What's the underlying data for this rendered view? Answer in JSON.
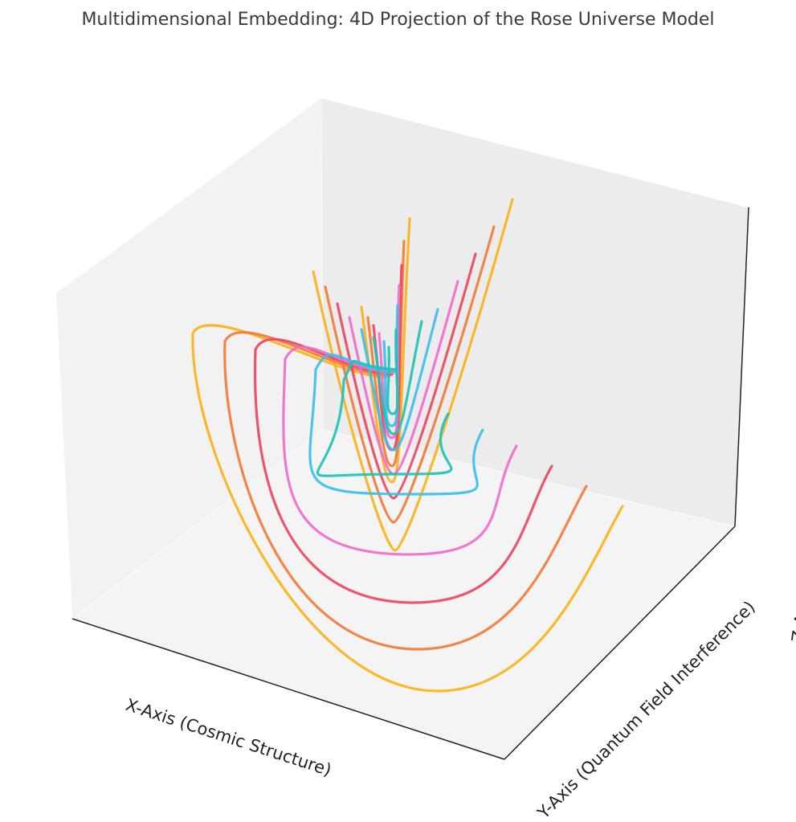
{
  "chart_data": {
    "type": "line3d",
    "title": "Multidimensional Embedding: 4D Projection of the Rose Universe Model",
    "xlabel": "X-Axis (Cosmic Structure)",
    "ylabel": "Y-Axis (Quantum Field Interference)",
    "zlabel": "Z-Axis (S",
    "grid": false,
    "ticks_visible": false,
    "series_colors": [
      "#fbb21a",
      "#f07c38",
      "#ec4662",
      "#f06ccc",
      "#3dbeec",
      "#1fc2b4"
    ],
    "loop_count_per_color": [
      2,
      2,
      2,
      2,
      2,
      2
    ]
  }
}
